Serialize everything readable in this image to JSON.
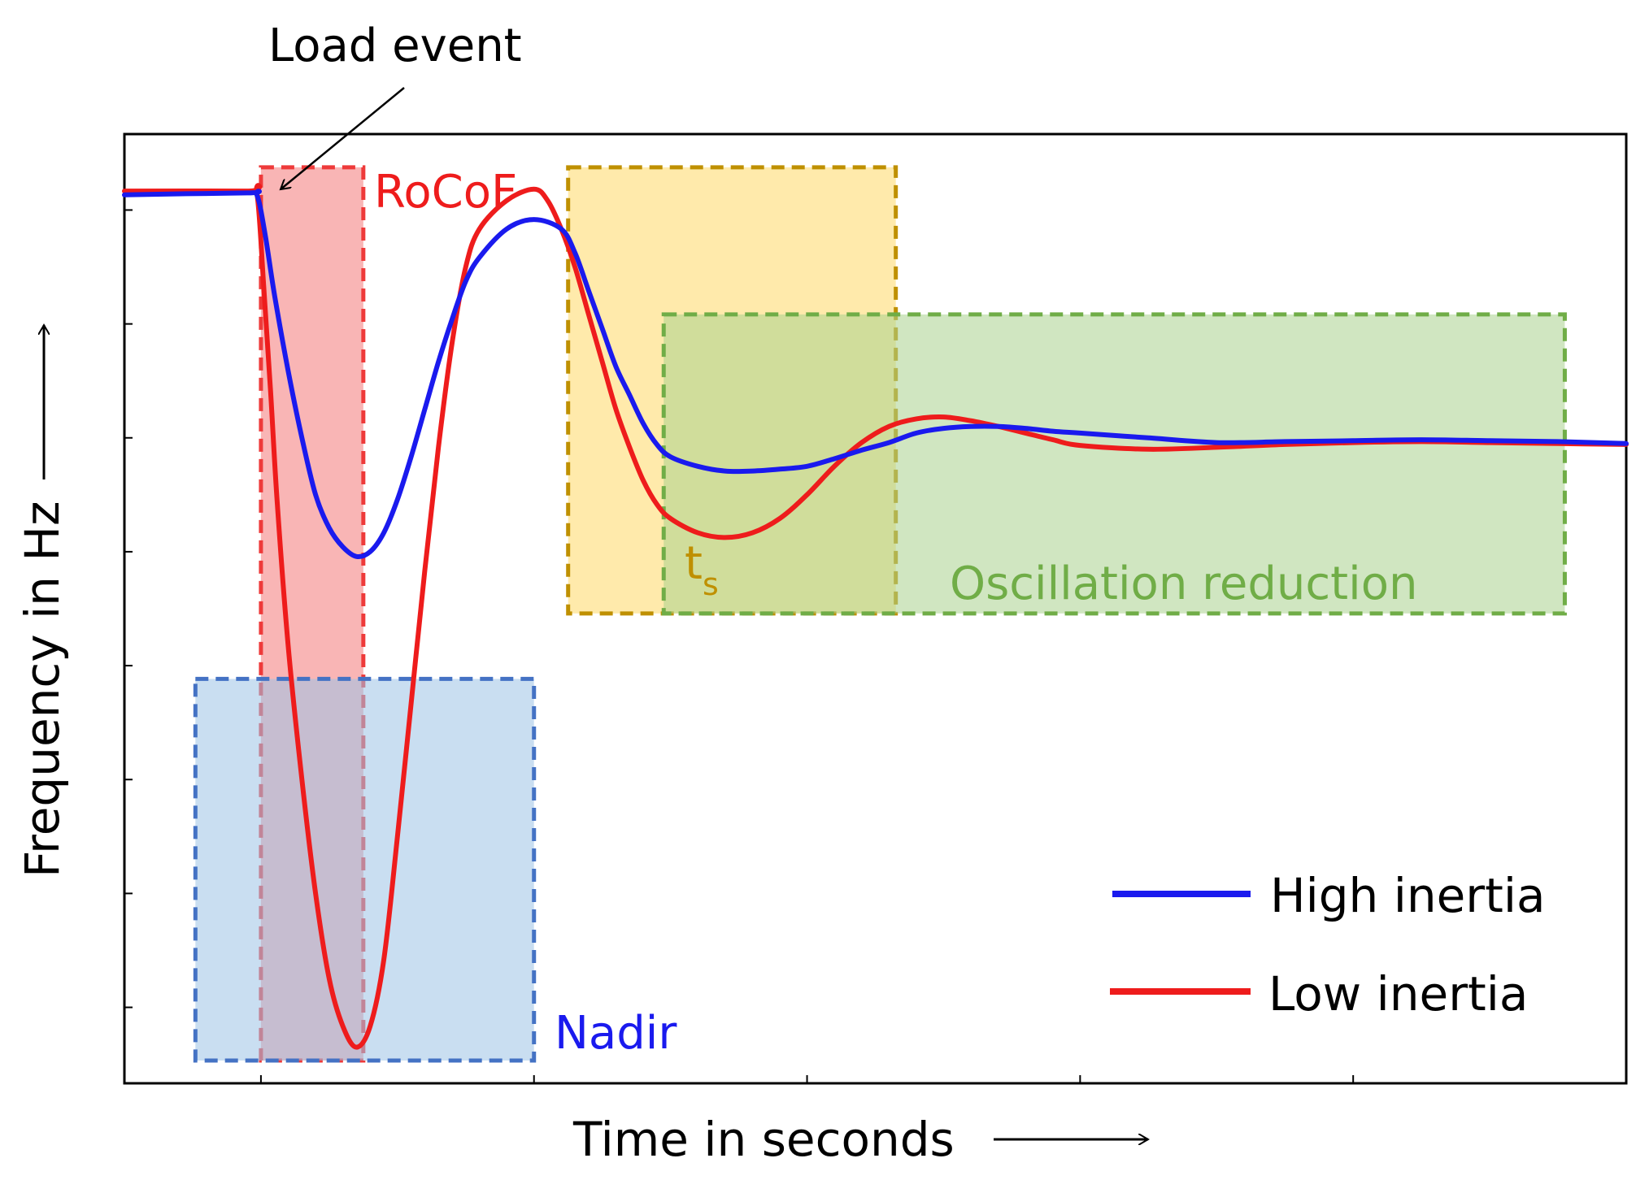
{
  "chart_data": {
    "type": "line",
    "xlabel": "Time in seconds",
    "ylabel": "Frequency in Hz",
    "xlim": [
      0,
      11
    ],
    "ylim": [
      0,
      10
    ],
    "grid": false,
    "legend_position": "bottom-right",
    "series": [
      {
        "name": "High inertia",
        "color": "#1a1aee",
        "x": [
          0,
          0.9,
          0.97,
          1.03,
          1.1,
          1.2,
          1.3,
          1.4,
          1.5,
          1.6,
          1.7,
          1.8,
          1.9,
          2.0,
          2.1,
          2.2,
          2.3,
          2.4,
          2.5,
          2.6,
          2.8,
          3.0,
          3.2,
          3.3,
          3.4,
          3.5,
          3.6,
          3.7,
          3.8,
          3.9,
          4.0,
          4.2,
          4.4,
          4.6,
          4.8,
          5.0,
          5.2,
          5.4,
          5.6,
          5.8,
          6.0,
          6.2,
          6.4,
          6.6,
          6.8,
          7.0,
          7.5,
          8.0,
          8.5,
          9.0,
          9.5,
          10.0,
          10.5,
          11.0
        ],
        "y": [
          9.36,
          9.38,
          9.36,
          8.95,
          8.3,
          7.5,
          6.8,
          6.2,
          5.85,
          5.65,
          5.55,
          5.6,
          5.8,
          6.15,
          6.6,
          7.1,
          7.6,
          8.05,
          8.45,
          8.7,
          9.0,
          9.1,
          9.0,
          8.75,
          8.35,
          7.95,
          7.55,
          7.25,
          6.95,
          6.73,
          6.6,
          6.5,
          6.45,
          6.45,
          6.47,
          6.5,
          6.58,
          6.67,
          6.75,
          6.85,
          6.9,
          6.92,
          6.92,
          6.9,
          6.87,
          6.85,
          6.8,
          6.75,
          6.76,
          6.77,
          6.78,
          6.77,
          6.76,
          6.74
        ]
      },
      {
        "name": "Low inertia",
        "color": "#ee1c1c",
        "x": [
          0,
          0.9,
          0.97,
          1.02,
          1.07,
          1.12,
          1.2,
          1.3,
          1.4,
          1.5,
          1.6,
          1.7,
          1.8,
          1.9,
          2.0,
          2.1,
          2.2,
          2.3,
          2.4,
          2.5,
          2.6,
          2.8,
          3.0,
          3.1,
          3.2,
          3.3,
          3.4,
          3.5,
          3.6,
          3.7,
          3.8,
          3.9,
          4.0,
          4.2,
          4.4,
          4.6,
          4.8,
          5.0,
          5.2,
          5.4,
          5.6,
          5.8,
          6.0,
          6.2,
          6.4,
          6.6,
          6.8,
          7.0,
          7.5,
          8.0,
          8.5,
          9.0,
          9.5,
          10.0,
          10.5,
          11.0
        ],
        "y": [
          9.4,
          9.4,
          9.38,
          8.4,
          7.3,
          6.1,
          4.6,
          3.2,
          2.0,
          1.1,
          0.6,
          0.38,
          0.6,
          1.3,
          2.6,
          4.0,
          5.4,
          6.7,
          7.8,
          8.6,
          9.0,
          9.3,
          9.42,
          9.3,
          9.0,
          8.6,
          8.1,
          7.6,
          7.1,
          6.7,
          6.35,
          6.1,
          5.95,
          5.8,
          5.75,
          5.8,
          5.95,
          6.2,
          6.5,
          6.75,
          6.92,
          7.0,
          7.02,
          6.98,
          6.92,
          6.85,
          6.78,
          6.72,
          6.68,
          6.7,
          6.73,
          6.75,
          6.76,
          6.75,
          6.74,
          6.73
        ]
      }
    ],
    "regions": [
      {
        "name": "rocof",
        "label": "RoCoF",
        "label_color": "#ee1c1c",
        "fill": "#f47979",
        "stroke": "#ee3a3a",
        "x": [
          1.0,
          1.75
        ],
        "y": [
          0.24,
          9.65
        ]
      },
      {
        "name": "nadir",
        "label": "Nadir",
        "label_color": "#1a1aee",
        "fill": "#9dc3e6",
        "stroke": "#4472c4",
        "x": [
          0.52,
          3.0
        ],
        "y": [
          0.24,
          4.26
        ]
      },
      {
        "name": "settling-time",
        "label": "t",
        "label_sub": "s",
        "label_color": "#bf9000",
        "fill": "#ffd966",
        "stroke": "#bf9000",
        "x": [
          3.25,
          5.65
        ],
        "y": [
          4.95,
          9.65
        ]
      },
      {
        "name": "oscillation",
        "label": "Oscillation reduction",
        "label_color": "#70ad47",
        "fill": "#a9d18e",
        "stroke": "#70ad47",
        "x": [
          3.95,
          10.55
        ],
        "y": [
          4.95,
          8.1
        ]
      }
    ],
    "annotations": [
      {
        "name": "load-event",
        "text": "Load event"
      }
    ],
    "axis_arrows": {
      "x": "⟶",
      "y": "⟶"
    }
  }
}
